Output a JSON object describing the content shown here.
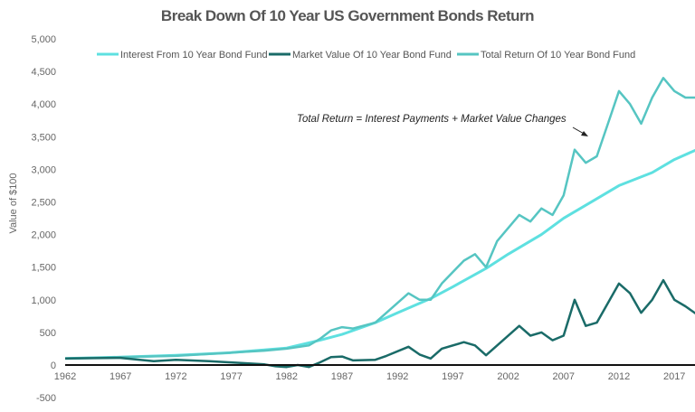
{
  "chart_data": {
    "type": "line",
    "title": "Break Down Of 10 Year US Government Bonds Return",
    "xlabel": "",
    "ylabel": "Value of $100",
    "xlim": [
      1962,
      2019
    ],
    "ylim": [
      -500,
      5000
    ],
    "x_ticks": [
      "1962",
      "1967",
      "1972",
      "1977",
      "1982",
      "1987",
      "1992",
      "1997",
      "2002",
      "2007",
      "2012",
      "2017"
    ],
    "y_ticks": [
      "-500",
      "0",
      "500",
      "1,000",
      "1,500",
      "2,000",
      "2,500",
      "3,000",
      "3,500",
      "4,000",
      "4,500",
      "5,000"
    ],
    "y_tick_values": [
      -500,
      0,
      500,
      1000,
      1500,
      2000,
      2500,
      3000,
      3500,
      4000,
      4500,
      5000
    ],
    "grid": false,
    "legend_position": "top",
    "annotation": "Total Return  = Interest Payments + Market Value Changes",
    "series": [
      {
        "name": "Interest From 10 Year Bond Fund",
        "color": "#5ee0e0",
        "x": [
          1962,
          1967,
          1972,
          1977,
          1982,
          1985,
          1987,
          1990,
          1992,
          1995,
          1997,
          2000,
          2002,
          2005,
          2007,
          2010,
          2012,
          2015,
          2017,
          2019
        ],
        "y": [
          100,
          120,
          150,
          190,
          260,
          380,
          470,
          650,
          800,
          1020,
          1200,
          1480,
          1700,
          2000,
          2250,
          2550,
          2750,
          2950,
          3150,
          3300
        ]
      },
      {
        "name": "Market Value Of 10 Year Bond Fund",
        "color": "#1a6b68",
        "x": [
          1962,
          1967,
          1970,
          1972,
          1975,
          1977,
          1980,
          1981,
          1982,
          1983,
          1984,
          1985,
          1986,
          1987,
          1988,
          1990,
          1991,
          1993,
          1994,
          1995,
          1996,
          1998,
          1999,
          2000,
          2001,
          2003,
          2004,
          2005,
          2006,
          2007,
          2008,
          2009,
          2010,
          2011,
          2012,
          2013,
          2014,
          2015,
          2016,
          2017,
          2018,
          2019
        ],
        "y": [
          100,
          110,
          60,
          80,
          60,
          40,
          10,
          -20,
          -30,
          0,
          -30,
          40,
          120,
          130,
          70,
          80,
          140,
          280,
          160,
          100,
          250,
          350,
          300,
          150,
          300,
          600,
          450,
          500,
          380,
          450,
          1000,
          600,
          650,
          950,
          1250,
          1100,
          800,
          1000,
          1300,
          1000,
          900,
          780
        ]
      },
      {
        "name": "Total Return Of 10 Year Bond Fund",
        "color": "#56c5c2",
        "x": [
          1962,
          1967,
          1972,
          1977,
          1980,
          1982,
          1984,
          1985,
          1986,
          1987,
          1988,
          1990,
          1991,
          1993,
          1994,
          1995,
          1996,
          1998,
          1999,
          2000,
          2001,
          2003,
          2004,
          2005,
          2006,
          2007,
          2008,
          2009,
          2010,
          2011,
          2012,
          2013,
          2014,
          2015,
          2016,
          2017,
          2018,
          2019
        ],
        "y": [
          100,
          120,
          140,
          190,
          220,
          250,
          300,
          400,
          530,
          580,
          560,
          650,
          800,
          1100,
          1000,
          1000,
          1250,
          1600,
          1700,
          1500,
          1900,
          2300,
          2200,
          2400,
          2300,
          2600,
          3300,
          3100,
          3200,
          3700,
          4200,
          4000,
          3700,
          4100,
          4400,
          4200,
          4100,
          4100
        ]
      }
    ]
  }
}
